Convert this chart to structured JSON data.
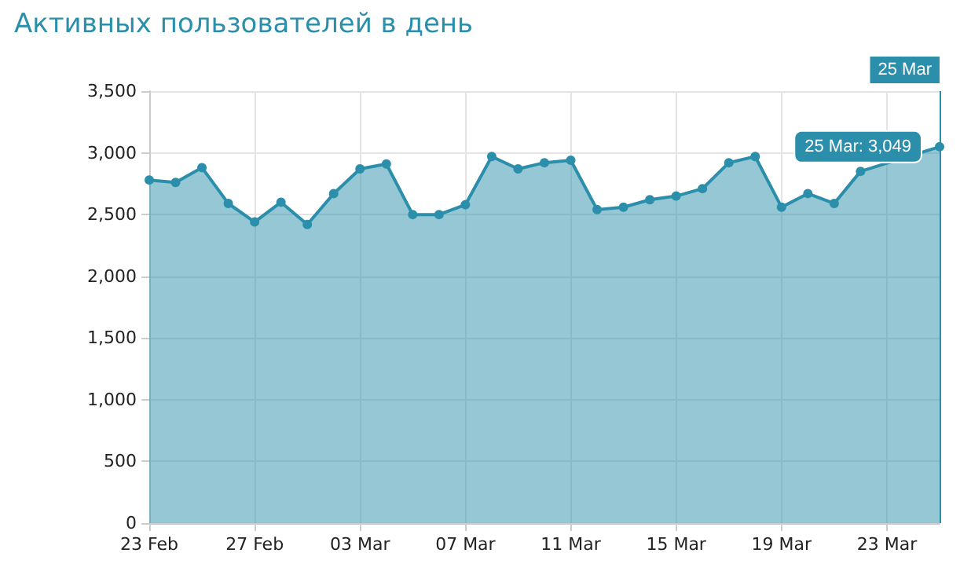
{
  "chart_data": {
    "type": "area",
    "title": "Активных пользователей в день",
    "x": [
      "--02-23",
      "--02-24",
      "--02-25",
      "--02-26",
      "--02-27",
      "--02-28",
      "--03-01",
      "--03-02",
      "--03-03",
      "--03-04",
      "--03-05",
      "--03-06",
      "--03-07",
      "--03-08",
      "--03-09",
      "--03-10",
      "--03-11",
      "--03-12",
      "--03-13",
      "--03-14",
      "--03-15",
      "--03-16",
      "--03-17",
      "--03-18",
      "--03-19",
      "--03-20",
      "--03-21",
      "--03-22",
      "--03-23",
      "--03-24",
      "--03-25"
    ],
    "series": [
      {
        "color": "#2b8fab",
        "values": [
          2780,
          2760,
          2880,
          2590,
          2440,
          2600,
          2420,
          2670,
          2870,
          2910,
          2500,
          2500,
          2580,
          2970,
          2870,
          2920,
          2940,
          2540,
          2560,
          2620,
          2650,
          2710,
          2920,
          2970,
          2560,
          2670,
          2590,
          2850,
          null,
          null,
          3049
        ]
      }
    ],
    "xlim": [
      "--02-23",
      "--03-25"
    ],
    "xticks": [
      {
        "value": "--02-23",
        "label": "23 Feb"
      },
      {
        "value": "--02-27",
        "label": "27 Feb"
      },
      {
        "value": "--03-03",
        "label": "03 Mar"
      },
      {
        "value": "--03-07",
        "label": "07 Mar"
      },
      {
        "value": "--03-11",
        "label": "11 Mar"
      },
      {
        "value": "--03-15",
        "label": "15 Mar"
      },
      {
        "value": "--03-19",
        "label": "19 Mar"
      },
      {
        "value": "--03-23",
        "label": "23 Mar"
      }
    ],
    "ylim": [
      0,
      3500
    ],
    "yticks": [
      {
        "value": 0,
        "label": "0"
      },
      {
        "value": 500,
        "label": "500"
      },
      {
        "value": 1000,
        "label": "1,000"
      },
      {
        "value": 1500,
        "label": "1,500"
      },
      {
        "value": 2000,
        "label": "2,000"
      },
      {
        "value": 2500,
        "label": "2,500"
      },
      {
        "value": 3000,
        "label": "3,000"
      },
      {
        "value": 3500,
        "label": "3,500"
      }
    ],
    "ref_lines": [
      {
        "axis": "x",
        "value": "--03-25",
        "label": "25 Mar",
        "color": "#2b8fab"
      }
    ],
    "annotations": [
      {
        "text": "25 Mar: 3,049",
        "x": "--03-25",
        "y": 3049
      }
    ],
    "grid": true,
    "marker": "circle",
    "line_style": "solid"
  }
}
